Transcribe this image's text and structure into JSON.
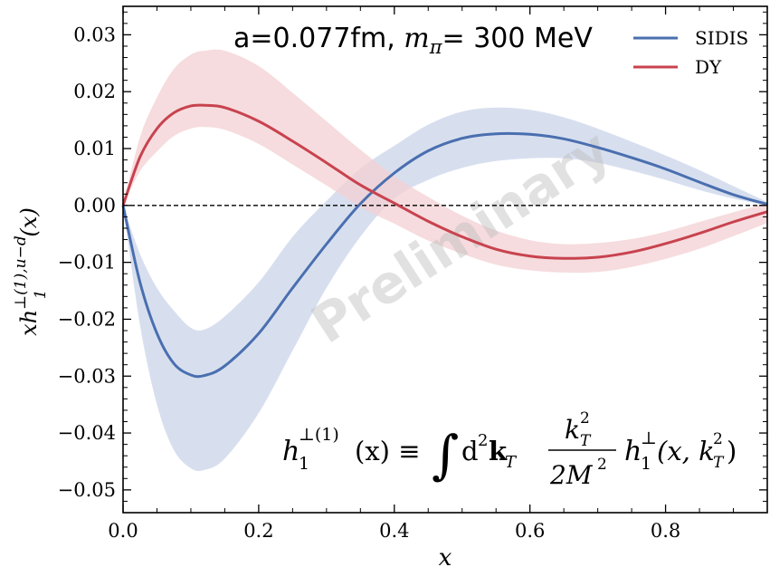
{
  "chart_data": {
    "type": "line",
    "annotation_parts": [
      "a=0.077fm, ",
      "m",
      "π",
      "= 300 MeV"
    ],
    "xlabel": "x",
    "ylabel_parts": [
      "xh",
      "⊥(1),u−d",
      "1",
      "(x)"
    ],
    "xlim": [
      0.0,
      0.95
    ],
    "ylim": [
      -0.054,
      0.035
    ],
    "xticks": [
      0.0,
      0.2,
      0.4,
      0.6,
      0.8
    ],
    "xtick_labels": [
      "0.0",
      "0.2",
      "0.4",
      "0.6",
      "0.8"
    ],
    "yticks": [
      0.03,
      0.02,
      0.01,
      0.0,
      -0.01,
      -0.02,
      -0.03,
      -0.04,
      -0.05
    ],
    "ytick_labels": [
      "0.03",
      "0.02",
      "0.01",
      "0.00",
      "−0.01",
      "−0.02",
      "−0.03",
      "−0.04",
      "−0.05"
    ],
    "reference_line_y": 0.0,
    "legend_position": "top-right",
    "watermark": "Preliminary",
    "formula_parts": {
      "lhs": "h",
      "lhs_sup": "⊥(1)",
      "lhs_sub": "1",
      "arg": "(x) ≡",
      "integral": "∫",
      "measure": "d",
      "measure_sup": "2",
      "kvec": "k",
      "kvec_sub": "T",
      "frac_num": "k",
      "frac_num_sup": "2",
      "frac_num_sub": "T",
      "frac_den": "2M",
      "frac_den_sup": "2",
      "rhs": "h",
      "rhs_sup": "⊥",
      "rhs_sub": "1",
      "rhs_arg_open": "(x, k",
      "rhs_arg_sup": "2",
      "rhs_arg_sub": "T",
      "rhs_arg_close": ")"
    },
    "series": [
      {
        "name": "SIDIS",
        "color": "#4a6faf",
        "band_color": "#c9d4ea",
        "x": [
          0.0,
          0.025,
          0.05,
          0.075,
          0.1,
          0.12,
          0.15,
          0.2,
          0.25,
          0.3,
          0.35,
          0.4,
          0.45,
          0.5,
          0.55,
          0.6,
          0.65,
          0.7,
          0.75,
          0.8,
          0.85,
          0.9,
          0.95
        ],
        "y": [
          0.0,
          -0.0135,
          -0.0225,
          -0.0278,
          -0.0298,
          -0.0299,
          -0.0282,
          -0.0225,
          -0.0145,
          -0.0068,
          0.0003,
          0.0057,
          0.0096,
          0.0118,
          0.0126,
          0.0125,
          0.0117,
          0.0102,
          0.0084,
          0.0064,
          0.0041,
          0.0019,
          0.0002
        ],
        "lower": [
          0.0,
          -0.021,
          -0.035,
          -0.043,
          -0.0462,
          -0.0465,
          -0.0445,
          -0.0365,
          -0.0255,
          -0.0145,
          -0.0055,
          0.0012,
          0.0045,
          0.0066,
          0.0078,
          0.0083,
          0.0083,
          0.0075,
          0.0061,
          0.0045,
          0.0027,
          0.0012,
          0.0
        ],
        "upper": [
          0.0,
          -0.0085,
          -0.0145,
          -0.0185,
          -0.0215,
          -0.0218,
          -0.0195,
          -0.0135,
          -0.0055,
          0.0008,
          0.0065,
          0.0105,
          0.0142,
          0.0165,
          0.0172,
          0.0168,
          0.0155,
          0.0135,
          0.0112,
          0.0088,
          0.0062,
          0.0034,
          0.0006
        ]
      },
      {
        "name": "DY",
        "color": "#c8434f",
        "band_color": "#f3d0d3",
        "x": [
          0.0,
          0.025,
          0.05,
          0.075,
          0.1,
          0.12,
          0.15,
          0.2,
          0.25,
          0.3,
          0.35,
          0.4,
          0.45,
          0.5,
          0.55,
          0.6,
          0.65,
          0.7,
          0.75,
          0.8,
          0.85,
          0.9,
          0.95
        ],
        "y": [
          0.0,
          0.0085,
          0.0135,
          0.0163,
          0.0175,
          0.0176,
          0.0172,
          0.0148,
          0.0113,
          0.0075,
          0.0036,
          0.0004,
          -0.0028,
          -0.0055,
          -0.0077,
          -0.0089,
          -0.0093,
          -0.0091,
          -0.0082,
          -0.0067,
          -0.0049,
          -0.0029,
          -0.0011
        ],
        "lower": [
          0.0,
          0.006,
          0.0095,
          0.0122,
          0.0135,
          0.0138,
          0.0133,
          0.0108,
          0.0072,
          0.0035,
          -0.0003,
          -0.0032,
          -0.0062,
          -0.0085,
          -0.0104,
          -0.0114,
          -0.0118,
          -0.0117,
          -0.0108,
          -0.0094,
          -0.0076,
          -0.0054,
          -0.0031
        ],
        "upper": [
          0.0,
          0.012,
          0.019,
          0.024,
          0.0265,
          0.0272,
          0.0272,
          0.0245,
          0.0198,
          0.0148,
          0.0098,
          0.0052,
          0.0015,
          -0.0018,
          -0.0044,
          -0.0061,
          -0.0068,
          -0.0066,
          -0.0059,
          -0.0046,
          -0.0029,
          -0.0012,
          0.0004
        ]
      }
    ]
  }
}
